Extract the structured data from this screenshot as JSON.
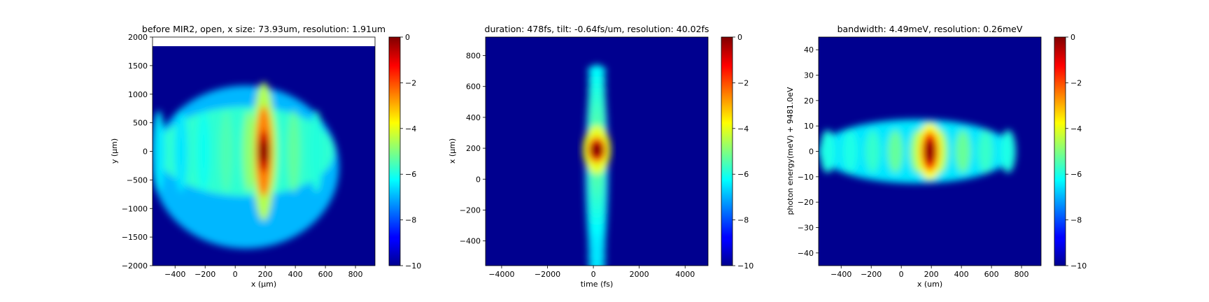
{
  "chart_data": [
    {
      "type": "heatmap",
      "title": "before MIR2, open, x size: 73.93um, resolution: 1.91um",
      "xlabel": "x (μm)",
      "ylabel": "y (μm)",
      "xlim": [
        -550,
        930
      ],
      "ylim": [
        -2000,
        2000
      ],
      "data_ylim": [
        -2000,
        1840
      ],
      "xticks": [
        -400,
        -200,
        0,
        200,
        400,
        600,
        800
      ],
      "xtick_labels": [
        "−400",
        "−200",
        "0",
        "200",
        "400",
        "600",
        "800"
      ],
      "yticks": [
        -2000,
        -1500,
        -1000,
        -500,
        0,
        500,
        1000,
        1500,
        2000
      ],
      "ytick_labels": [
        "−2000",
        "−1500",
        "−1000",
        "−500",
        "0",
        "500",
        "1000",
        "1500",
        "2000"
      ],
      "colorbar": {
        "range": [
          -10,
          0
        ],
        "ticks": [
          0,
          -2,
          -4,
          -6,
          -8,
          -10
        ],
        "tick_labels": [
          "0",
          "−2",
          "−4",
          "−6",
          "−8",
          "−10"
        ],
        "colormap": "jet"
      },
      "features": {
        "peak": {
          "x": 190,
          "y": 0,
          "value": 0
        },
        "beam_x_extent": [
          -550,
          690
        ],
        "beam_y_extent": [
          -1700,
          1150
        ],
        "fringe_period_x": 150
      }
    },
    {
      "type": "heatmap",
      "title": "duration: 478fs, tilt: -0.64fs/um, resolution: 40.02fs",
      "xlabel": "time (fs)",
      "ylabel": "x (μm)",
      "xlim": [
        -4700,
        5000
      ],
      "ylim": [
        -560,
        920
      ],
      "xticks": [
        -4000,
        -2000,
        0,
        2000,
        4000
      ],
      "xtick_labels": [
        "−4000",
        "−2000",
        "0",
        "2000",
        "4000"
      ],
      "yticks": [
        -400,
        -200,
        0,
        200,
        400,
        600,
        800
      ],
      "ytick_labels": [
        "−400",
        "−200",
        "0",
        "200",
        "400",
        "600",
        "800"
      ],
      "colorbar": {
        "range": [
          -10,
          0
        ],
        "ticks": [
          0,
          -2,
          -4,
          -6,
          -8,
          -10
        ],
        "tick_labels": [
          "0",
          "−2",
          "−4",
          "−6",
          "−8",
          "−10"
        ],
        "colormap": "jet"
      },
      "features": {
        "peak": {
          "x": 150,
          "y": 190,
          "value": 0
        },
        "beam_x_extent": [
          -350,
          650
        ],
        "beam_y_extent": [
          -560,
          700
        ]
      }
    },
    {
      "type": "heatmap",
      "title": "bandwidth: 4.49meV, resolution: 0.26meV",
      "xlabel": "x (um)",
      "ylabel": "photon energy(meV) + 9481.0eV",
      "xlim": [
        -550,
        930
      ],
      "ylim": [
        -45,
        45
      ],
      "xticks": [
        -400,
        -200,
        0,
        200,
        400,
        600,
        800
      ],
      "xtick_labels": [
        "−400",
        "−200",
        "0",
        "200",
        "400",
        "600",
        "800"
      ],
      "yticks": [
        -40,
        -30,
        -20,
        -10,
        0,
        10,
        20,
        30,
        40
      ],
      "ytick_labels": [
        "−40",
        "−30",
        "−20",
        "−10",
        "0",
        "10",
        "20",
        "30",
        "40"
      ],
      "colorbar": {
        "range": [
          -10,
          0
        ],
        "ticks": [
          0,
          -2,
          -4,
          -6,
          -8,
          -10
        ],
        "tick_labels": [
          "0",
          "−2",
          "−4",
          "−6",
          "−8",
          "−10"
        ],
        "colormap": "jet"
      },
      "features": {
        "peak": {
          "x": 190,
          "y": 0,
          "value": 0
        },
        "beam_x_extent": [
          -550,
          750
        ],
        "beam_y_extent": [
          -14,
          14
        ],
        "fringe_period_x": 150
      }
    }
  ],
  "colors": {
    "background_low": "#00008f",
    "peak": "#800000"
  }
}
